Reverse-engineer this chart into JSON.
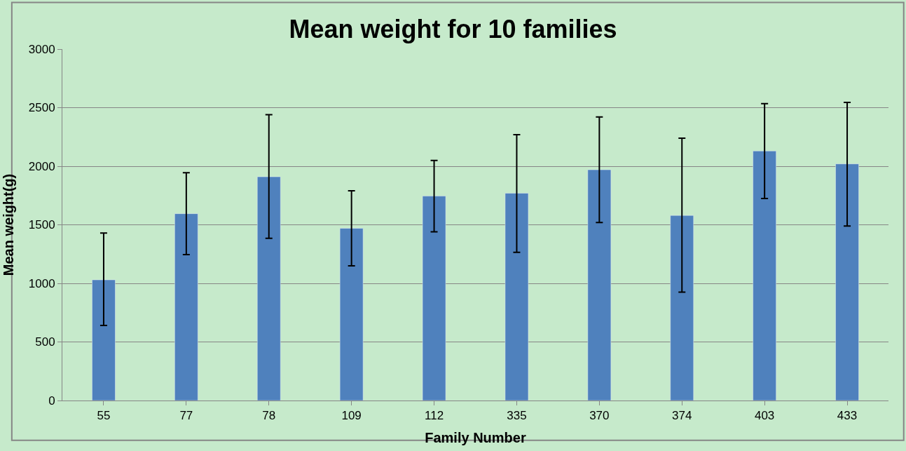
{
  "chart_data": {
    "type": "bar",
    "title": "Mean weight for 10 families",
    "xlabel": "Family Number",
    "ylabel": "Mean weight(g)",
    "categories": [
      "55",
      "77",
      "78",
      "109",
      "112",
      "335",
      "370",
      "374",
      "403",
      "433"
    ],
    "values": [
      1030,
      1595,
      1910,
      1470,
      1745,
      1770,
      1970,
      1580,
      2130,
      2020
    ],
    "errors": [
      [
        640,
        1430
      ],
      [
        1245,
        1945
      ],
      [
        1385,
        2440
      ],
      [
        1150,
        1790
      ],
      [
        1440,
        2050
      ],
      [
        1265,
        2270
      ],
      [
        1520,
        2420
      ],
      [
        925,
        2240
      ],
      [
        1725,
        2535
      ],
      [
        1490,
        2545
      ]
    ],
    "color": "#4f81bd",
    "ylim": [
      0,
      3000
    ],
    "yticks": [
      0,
      500,
      1000,
      1500,
      2000,
      2500,
      3000
    ],
    "grid": "y"
  }
}
